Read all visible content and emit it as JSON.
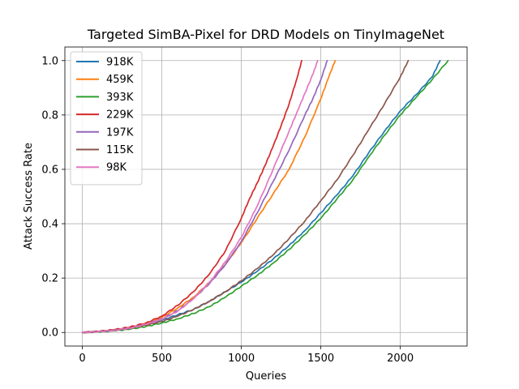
{
  "chart_data": {
    "type": "line",
    "title": "Targeted SimBA-Pixel for DRD Models on TinyImageNet",
    "xlabel": "Queries",
    "ylabel": "Attack Success Rate",
    "xlim": [
      -110,
      2420
    ],
    "ylim": [
      -0.05,
      1.05
    ],
    "grid": true,
    "legend_position": "upper-left",
    "x_ticks": [
      0,
      500,
      1000,
      1500,
      2000
    ],
    "x_tick_labels": [
      "0",
      "500",
      "1000",
      "1500",
      "2000"
    ],
    "y_ticks": [
      0.0,
      0.2,
      0.4,
      0.6,
      0.8,
      1.0
    ],
    "y_tick_labels": [
      "0.0",
      "0.2",
      "0.4",
      "0.6",
      "0.8",
      "1.0"
    ],
    "series": [
      {
        "name": "918K",
        "color": "#1f77b4",
        "x": [
          0,
          100,
          200,
          300,
          400,
          500,
          600,
          700,
          800,
          900,
          1000,
          1100,
          1200,
          1300,
          1400,
          1500,
          1600,
          1700,
          1800,
          1900,
          2000,
          2100,
          2200,
          2250
        ],
        "y": [
          0,
          0.003,
          0.008,
          0.015,
          0.028,
          0.045,
          0.065,
          0.085,
          0.115,
          0.15,
          0.185,
          0.225,
          0.27,
          0.32,
          0.375,
          0.44,
          0.505,
          0.575,
          0.66,
          0.74,
          0.815,
          0.875,
          0.94,
          1.0
        ]
      },
      {
        "name": "459K",
        "color": "#ff7f0e",
        "x": [
          0,
          100,
          200,
          300,
          400,
          500,
          600,
          700,
          800,
          900,
          1000,
          1100,
          1200,
          1300,
          1400,
          1500,
          1550,
          1590
        ],
        "y": [
          0,
          0.003,
          0.008,
          0.017,
          0.03,
          0.055,
          0.09,
          0.13,
          0.185,
          0.25,
          0.33,
          0.42,
          0.51,
          0.6,
          0.72,
          0.86,
          0.94,
          1.0
        ]
      },
      {
        "name": "393K",
        "color": "#2ca02c",
        "x": [
          0,
          100,
          200,
          300,
          400,
          500,
          600,
          700,
          800,
          900,
          1000,
          1100,
          1200,
          1300,
          1400,
          1500,
          1600,
          1700,
          1800,
          1900,
          2000,
          2100,
          2200,
          2300
        ],
        "y": [
          0,
          0.002,
          0.006,
          0.012,
          0.022,
          0.035,
          0.05,
          0.07,
          0.095,
          0.13,
          0.17,
          0.21,
          0.255,
          0.305,
          0.36,
          0.42,
          0.49,
          0.56,
          0.645,
          0.725,
          0.8,
          0.865,
          0.93,
          1.0
        ]
      },
      {
        "name": "229K",
        "color": "#d62728",
        "x": [
          0,
          100,
          200,
          300,
          400,
          500,
          600,
          700,
          800,
          900,
          1000,
          1050,
          1100,
          1150,
          1200,
          1250,
          1300,
          1350,
          1380
        ],
        "y": [
          0,
          0.004,
          0.01,
          0.02,
          0.035,
          0.06,
          0.1,
          0.15,
          0.215,
          0.3,
          0.42,
          0.49,
          0.55,
          0.615,
          0.685,
          0.76,
          0.84,
          0.935,
          1.0
        ]
      },
      {
        "name": "197K",
        "color": "#9467bd",
        "x": [
          0,
          100,
          200,
          300,
          400,
          500,
          600,
          700,
          800,
          900,
          1000,
          1100,
          1200,
          1300,
          1400,
          1450,
          1500,
          1540
        ],
        "y": [
          0,
          0.003,
          0.008,
          0.016,
          0.03,
          0.05,
          0.08,
          0.125,
          0.18,
          0.25,
          0.335,
          0.44,
          0.555,
          0.67,
          0.8,
          0.86,
          0.93,
          1.0
        ]
      },
      {
        "name": "115K",
        "color": "#8c564b",
        "x": [
          0,
          100,
          200,
          300,
          400,
          500,
          600,
          700,
          800,
          900,
          1000,
          1100,
          1200,
          1300,
          1400,
          1500,
          1600,
          1700,
          1800,
          1900,
          2000,
          2050
        ],
        "y": [
          0,
          0.003,
          0.008,
          0.015,
          0.027,
          0.04,
          0.06,
          0.085,
          0.115,
          0.15,
          0.19,
          0.235,
          0.285,
          0.345,
          0.41,
          0.485,
          0.56,
          0.65,
          0.745,
          0.84,
          0.94,
          1.0
        ]
      },
      {
        "name": "98K",
        "color": "#e377c2",
        "x": [
          0,
          100,
          200,
          300,
          400,
          500,
          600,
          700,
          800,
          900,
          1000,
          1100,
          1200,
          1300,
          1350,
          1400,
          1450,
          1480
        ],
        "y": [
          0,
          0.003,
          0.008,
          0.016,
          0.03,
          0.048,
          0.078,
          0.125,
          0.185,
          0.26,
          0.35,
          0.465,
          0.6,
          0.74,
          0.81,
          0.88,
          0.95,
          1.0
        ]
      }
    ]
  }
}
